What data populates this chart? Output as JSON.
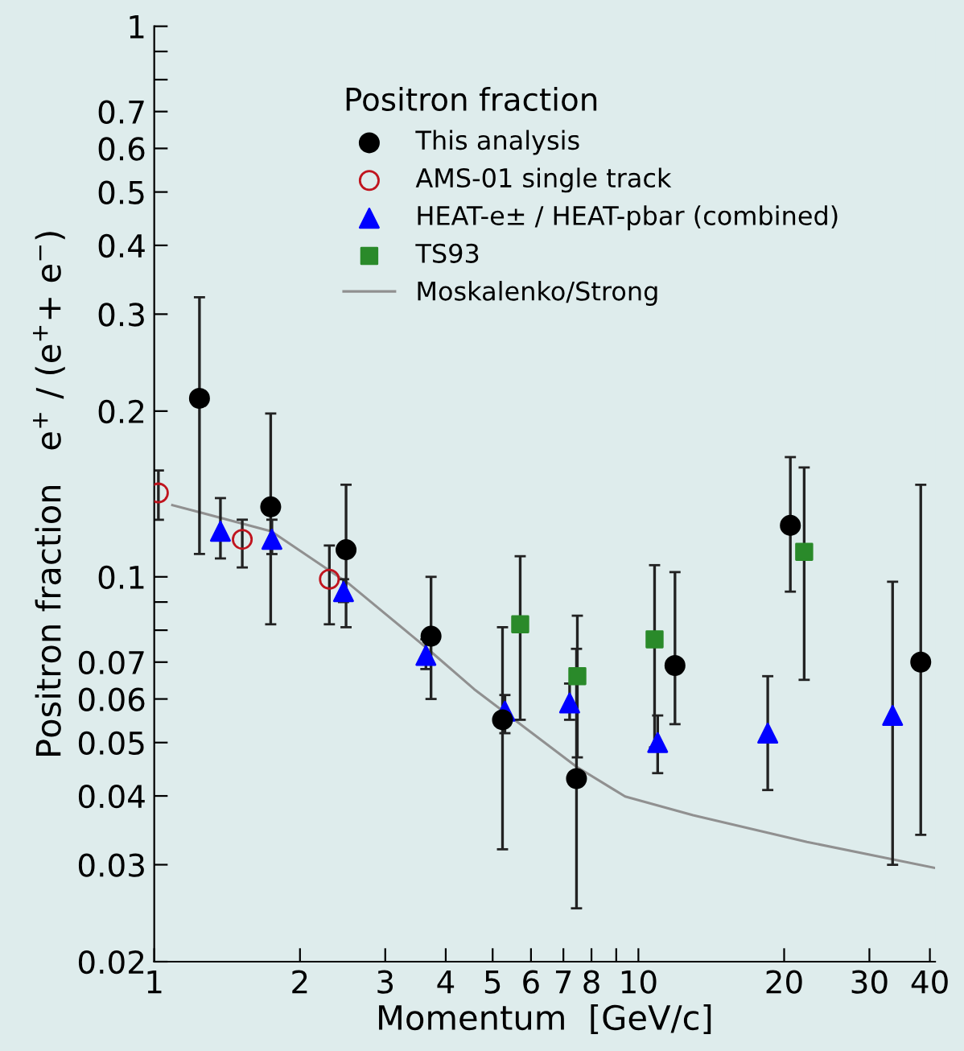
{
  "chart_data": {
    "type": "scatter",
    "xlabel": "Momentum  [GeV/c]",
    "ylabel": "Positron fraction   e$^{+}$ / (e$^{+}$+ e$^{−}$)",
    "legend_title": "Positron fraction",
    "log": "xy",
    "xlim": [
      1,
      41
    ],
    "ylim": [
      0.02,
      1
    ],
    "xticks": [
      1,
      2,
      3,
      4,
      5,
      6,
      7,
      8,
      {
        "value": 9,
        "label": null
      },
      10,
      20,
      30,
      40
    ],
    "yticks": [
      0.02,
      0.03,
      0.04,
      0.05,
      0.06,
      0.07,
      {
        "value": 0.08,
        "label": null
      },
      {
        "value": 0.09,
        "label": null
      },
      0.1,
      0.2,
      0.3,
      0.4,
      0.5,
      0.6,
      0.7,
      {
        "value": 0.8,
        "label": null
      },
      {
        "value": 0.9,
        "label": null
      },
      1
    ],
    "grid": false,
    "legend": "top",
    "series": [
      {
        "name": "This analysis",
        "marker": "circle",
        "color": "#000000",
        "x": [
          1.24,
          1.74,
          2.49,
          3.73,
          5.24,
          7.45,
          11.9,
          20.6,
          38.3
        ],
        "values": [
          0.211,
          0.134,
          0.112,
          0.078,
          0.055,
          0.043,
          0.069,
          0.124,
          0.07
        ],
        "errors": [
          [
            0.11,
            0.322
          ],
          [
            0.082,
            0.198
          ],
          [
            0.081,
            0.147
          ],
          [
            0.06,
            0.1
          ],
          [
            0.032,
            0.081
          ],
          [
            0.025,
            0.074
          ],
          [
            0.054,
            0.102
          ],
          [
            0.094,
            0.165
          ],
          [
            0.034,
            0.147
          ]
        ]
      },
      {
        "name": "AMS-01 single track",
        "marker": "circle",
        "color": "#c0141e",
        "x": [
          1.02,
          1.52,
          2.3
        ],
        "values": [
          0.142,
          0.117,
          0.099
        ],
        "errors": [
          [
            0.127,
            0.156
          ],
          [
            0.104,
            0.127
          ],
          [
            0.082,
            0.114
          ]
        ]
      },
      {
        "name": "HEAT-e± / HEAT-pbar (combined)",
        "marker": "triangle",
        "color": "#0000ff",
        "x": [
          1.37,
          1.75,
          2.46,
          3.64,
          5.3,
          7.21,
          10.96,
          18.5,
          33.5
        ],
        "values": [
          0.121,
          0.117,
          0.094,
          0.072,
          0.057,
          0.059,
          0.05,
          0.052,
          0.056
        ],
        "errors": [
          [
            0.108,
            0.139
          ],
          [
            0.11,
            0.127
          ],
          [
            0.09,
            0.099
          ],
          [
            0.068,
            0.077
          ],
          [
            0.052,
            0.061
          ],
          [
            0.055,
            0.064
          ],
          [
            0.044,
            0.056
          ],
          [
            0.041,
            0.066
          ],
          [
            0.03,
            0.098
          ]
        ]
      },
      {
        "name": "TS93",
        "marker": "square",
        "color": "#2a8a2a",
        "x": [
          5.7,
          7.48,
          10.8,
          22.0
        ],
        "values": [
          0.082,
          0.066,
          0.077,
          0.111
        ],
        "errors": [
          [
            0.055,
            0.109
          ],
          [
            0.047,
            0.085
          ],
          [
            0.049,
            0.105
          ],
          [
            0.065,
            0.158
          ]
        ]
      },
      {
        "name": "Moskalenko/Strong",
        "type": "line",
        "marker": "none",
        "line_style": "solid",
        "color": "#909090",
        "x": [
          1.09,
          1.745,
          2.53,
          3.67,
          4.58,
          7.45,
          9.39,
          12.97,
          22.3,
          41
        ],
        "values": [
          0.135,
          0.121,
          0.097,
          0.074,
          0.0625,
          0.0452,
          0.0399,
          0.0369,
          0.033,
          0.0296
        ]
      }
    ]
  }
}
